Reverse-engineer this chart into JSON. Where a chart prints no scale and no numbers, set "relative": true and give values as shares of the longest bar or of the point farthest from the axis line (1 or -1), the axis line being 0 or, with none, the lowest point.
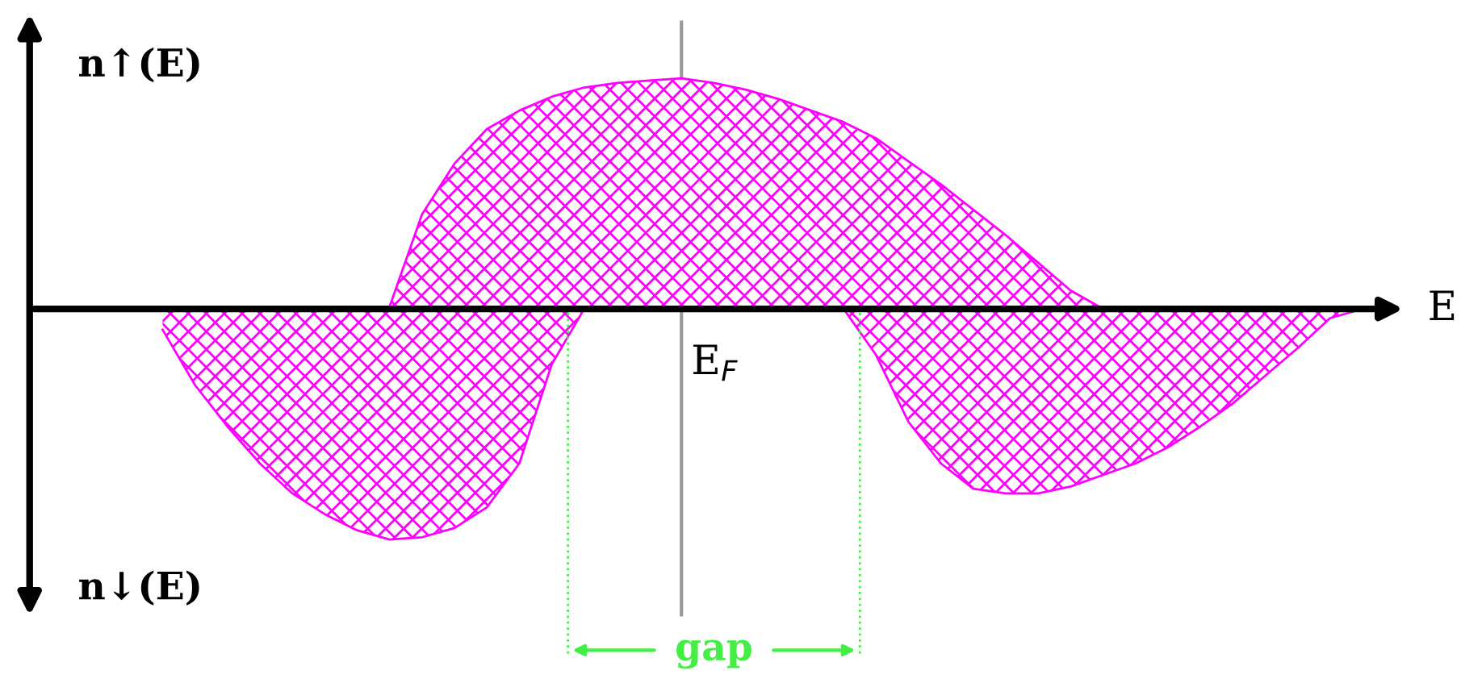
{
  "chart_data": {
    "type": "area",
    "relative": true,
    "xlabel": "E",
    "categories": [
      null,
      null,
      null,
      null,
      null,
      null,
      null,
      null,
      null,
      null,
      null,
      null,
      null,
      null,
      null,
      null,
      null,
      null,
      null,
      null,
      null,
      null,
      null,
      null,
      null,
      null,
      null,
      null,
      null,
      null,
      null,
      null,
      null,
      null,
      null,
      null,
      null,
      null,
      null,
      null,
      null,
      null
    ],
    "series": [
      {
        "color": "#ff00ff",
        "values": [
          null,
          null,
          null,
          null,
          null,
          null,
          null,
          null,
          null,
          null,
          null,
          0.01,
          0.41,
          0.63,
          0.78,
          0.86,
          0.92,
          0.96,
          0.98,
          0.99,
          1.0,
          0.98,
          0.95,
          0.91,
          0.86,
          0.81,
          0.74,
          0.64,
          0.54,
          0.43,
          0.32,
          0.2,
          0.08,
          0,
          null,
          null,
          null,
          null,
          null,
          null,
          null,
          null
        ]
      },
      {
        "color": "#ff00ff",
        "values": [
          null,
          null,
          null,
          null,
          -0.09,
          -0.33,
          -0.51,
          -0.67,
          -0.8,
          -0.89,
          -0.96,
          -1.0,
          -0.99,
          -0.95,
          -0.86,
          -0.67,
          -0.24,
          0,
          null,
          null,
          null,
          null,
          null,
          null,
          null,
          0,
          -0.2,
          -0.49,
          -0.67,
          -0.78,
          -0.8,
          -0.8,
          -0.77,
          -0.72,
          -0.67,
          -0.6,
          -0.51,
          -0.41,
          -0.29,
          -0.17,
          -0.04,
          0
        ]
      }
    ],
    "annotations": [
      "n↑(E)",
      "n↓(E)",
      "E$_{F}$",
      "gap"
    ]
  }
}
